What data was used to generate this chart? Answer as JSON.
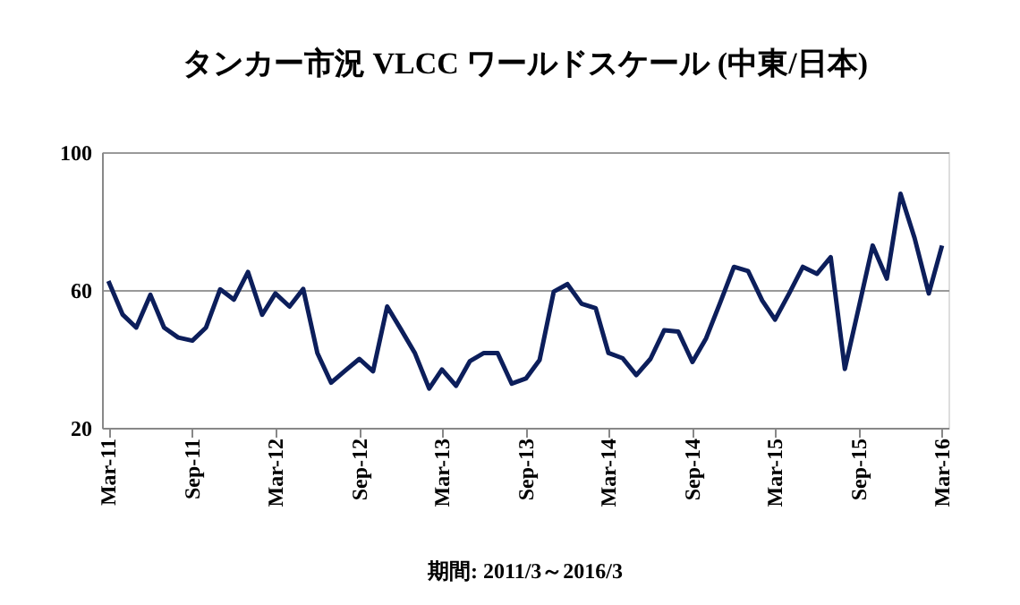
{
  "chart_data": {
    "type": "line",
    "title": "タンカー市況  VLCC ワールドスケール  (中東/日本)",
    "x": [
      "2011-03",
      "2011-04",
      "2011-05",
      "2011-06",
      "2011-07",
      "2011-08",
      "2011-09",
      "2011-10",
      "2011-11",
      "2011-12",
      "2012-01",
      "2012-02",
      "2012-03",
      "2012-04",
      "2012-05",
      "2012-06",
      "2012-07",
      "2012-08",
      "2012-09",
      "2012-10",
      "2012-11",
      "2012-12",
      "2013-01",
      "2013-02",
      "2013-03",
      "2013-04",
      "2013-05",
      "2013-06",
      "2013-07",
      "2013-08",
      "2013-09",
      "2013-10",
      "2013-11",
      "2013-12",
      "2014-01",
      "2014-02",
      "2014-03",
      "2014-04",
      "2014-05",
      "2014-06",
      "2014-07",
      "2014-08",
      "2014-09",
      "2014-10",
      "2014-11",
      "2014-12",
      "2015-01",
      "2015-02",
      "2015-03",
      "2015-04",
      "2015-05",
      "2015-06",
      "2015-07",
      "2015-08",
      "2015-09",
      "2015-10",
      "2015-11",
      "2015-12",
      "2016-01",
      "2016-02",
      "2016-03"
    ],
    "series": [
      {
        "color": "#0c1e5b",
        "values": [
          62.6,
          52.9,
          49.1,
          58.6,
          49.1,
          46.2,
          45.3,
          49.1,
          60.2,
          57.2,
          65.2,
          52.8,
          59,
          55.2,
          60.3,
          41.7,
          33.1,
          36.6,
          40,
          36.4,
          55.2,
          48.6,
          41.6,
          31.4,
          36.9,
          32.2,
          39.3,
          41.7,
          41.7,
          32.8,
          34.3,
          39.7,
          59.5,
          61.7,
          56,
          54.7,
          41.7,
          40.2,
          35.3,
          40,
          48.3,
          47.9,
          39.1,
          46,
          56.4,
          66.7,
          65.5,
          56.9,
          51.4,
          59,
          66.7,
          64.7,
          69.5,
          37.1,
          55.2,
          72.9,
          63.3,
          87.9,
          75,
          59,
          72.9
        ]
      }
    ],
    "xlim": [
      "2011-02-15",
      "2016-03-15"
    ],
    "xticks": [
      {
        "value": "2011-03",
        "label": "Mar-11"
      },
      {
        "value": "2011-09",
        "label": "Sep-11"
      },
      {
        "value": "2012-03",
        "label": "Mar-12"
      },
      {
        "value": "2012-09",
        "label": "Sep-12"
      },
      {
        "value": "2013-03",
        "label": "Mar-13"
      },
      {
        "value": "2013-09",
        "label": "Sep-13"
      },
      {
        "value": "2014-03",
        "label": "Mar-14"
      },
      {
        "value": "2014-09",
        "label": "Sep-14"
      },
      {
        "value": "2015-03",
        "label": "Mar-15"
      },
      {
        "value": "2015-09",
        "label": "Sep-15"
      },
      {
        "value": "2016-03",
        "label": "Mar-16"
      }
    ],
    "ylim": [
      20,
      100
    ],
    "yticks": [
      20,
      60,
      100
    ],
    "grid": "y",
    "legend": false,
    "marker": "none",
    "line_style": "solid",
    "annotations": [
      "期間: 2011/3～2016/3"
    ]
  }
}
